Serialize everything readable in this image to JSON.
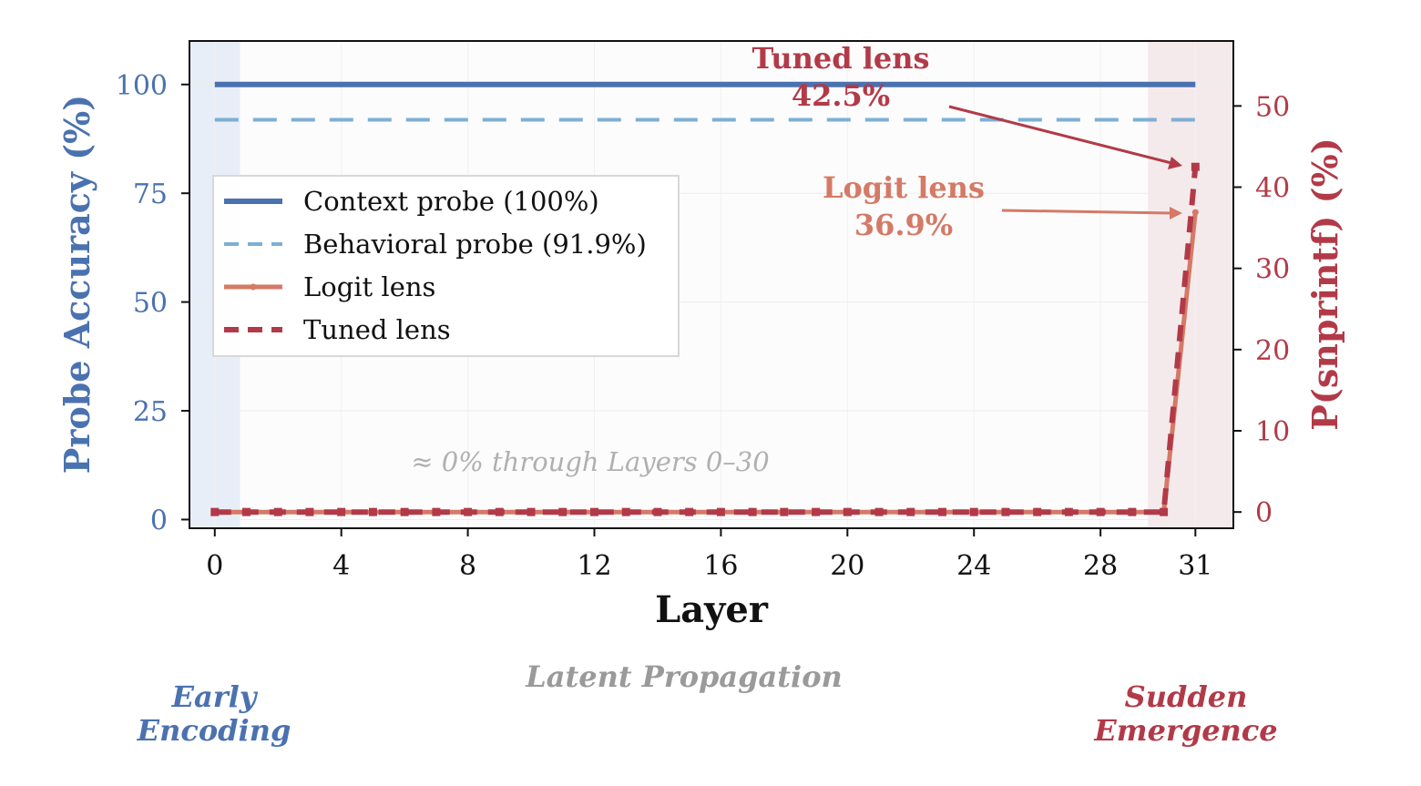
{
  "colors": {
    "context": "#4a72b0",
    "behavioral": "#7eafd4",
    "logit": "#d47a66",
    "tuned": "#b23a48",
    "left_axis": "#4a72b0",
    "right_axis": "#b23a48",
    "grey_text": "#9a9a9a"
  },
  "chart_data": {
    "type": "line",
    "xlabel": "Layer",
    "ylabel_left": "Probe Accuracy (%)",
    "ylabel_right": "P(snprintf) (%)",
    "xlim": [
      -0.8,
      32.2
    ],
    "ylim_left": [
      -2,
      110
    ],
    "ylim_right": [
      -2,
      58
    ],
    "xticks": [
      0,
      4,
      8,
      12,
      16,
      20,
      24,
      28,
      31
    ],
    "xtick_labels": [
      "0",
      "4",
      "8",
      "12",
      "16",
      "20",
      "24",
      "28",
      "31"
    ],
    "yticks_left": [
      0,
      25,
      50,
      75,
      100
    ],
    "yticks_left_labels": [
      "0",
      "25",
      "50",
      "75",
      "100"
    ],
    "yticks_right": [
      0,
      10,
      20,
      30,
      40,
      50
    ],
    "yticks_right_labels": [
      "0",
      "10",
      "20",
      "30",
      "40",
      "50"
    ],
    "grid": true,
    "legend_position": "center-left",
    "series": [
      {
        "name": "Context probe (100%)",
        "axis": "left",
        "style": "solid-thick",
        "x": [
          0,
          31
        ],
        "y": [
          100,
          100
        ]
      },
      {
        "name": "Behavioral probe (91.9%)",
        "axis": "left",
        "style": "dashed",
        "x": [
          0,
          31
        ],
        "y": [
          91.9,
          91.9
        ]
      },
      {
        "name": "Logit lens",
        "axis": "right",
        "style": "solid-marker",
        "x": [
          0,
          1,
          2,
          3,
          4,
          5,
          6,
          7,
          8,
          9,
          10,
          11,
          12,
          13,
          14,
          15,
          16,
          17,
          18,
          19,
          20,
          21,
          22,
          23,
          24,
          25,
          26,
          27,
          28,
          29,
          30,
          31
        ],
        "y": [
          0,
          0,
          0,
          0,
          0,
          0,
          0,
          0,
          0,
          0,
          0,
          0,
          0,
          0,
          0,
          0,
          0,
          0,
          0,
          0,
          0,
          0,
          0,
          0,
          0,
          0,
          0,
          0,
          0,
          0,
          0,
          36.9
        ]
      },
      {
        "name": "Tuned lens",
        "axis": "right",
        "style": "dashed-square",
        "x": [
          0,
          1,
          2,
          3,
          4,
          5,
          6,
          7,
          8,
          9,
          10,
          11,
          12,
          13,
          14,
          15,
          16,
          17,
          18,
          19,
          20,
          21,
          22,
          23,
          24,
          25,
          26,
          27,
          28,
          29,
          30,
          31
        ],
        "y": [
          0,
          0,
          0,
          0,
          0,
          0,
          0,
          0,
          0,
          0,
          0,
          0,
          0,
          0,
          0,
          0,
          0,
          0,
          0,
          0,
          0,
          0,
          0,
          0,
          0,
          0,
          0,
          0,
          0,
          0,
          0,
          42.5
        ]
      }
    ],
    "regions": [
      {
        "from": -0.8,
        "to": 0.8,
        "color": "#e8eef8"
      },
      {
        "from": 29.5,
        "to": 32.2,
        "color": "#f5eaeb"
      }
    ],
    "annotations": {
      "tuned_title": "Tuned lens",
      "tuned_value": "42.5%",
      "logit_title": "Logit lens",
      "logit_value": "36.9%",
      "flat_note": "≈ 0% through Layers 0–30"
    },
    "phases": {
      "early_line1": "Early",
      "early_line2": "Encoding",
      "latent": "Latent Propagation",
      "sudden_line1": "Sudden",
      "sudden_line2": "Emergence"
    }
  }
}
